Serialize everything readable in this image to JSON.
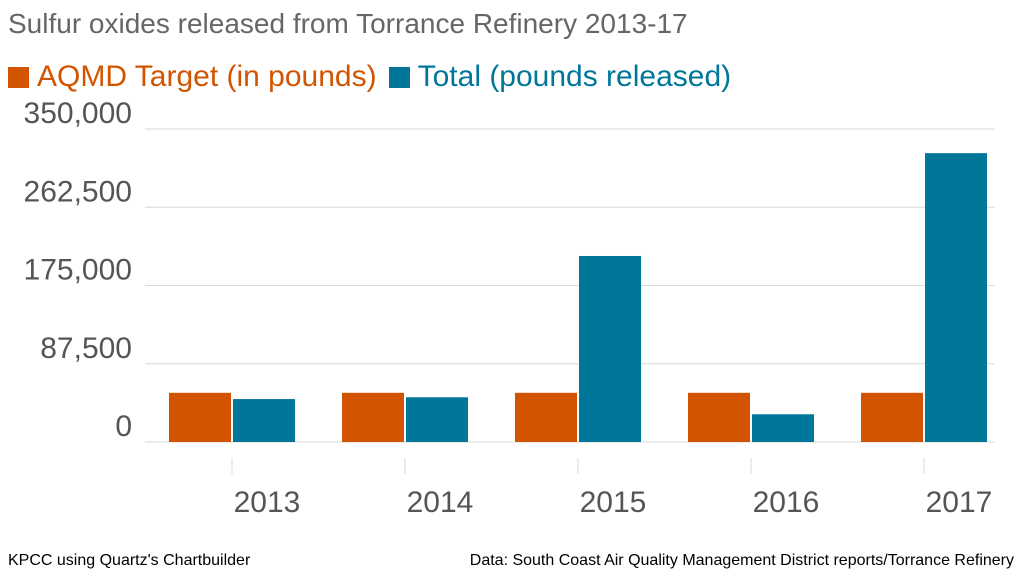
{
  "title": "Sulfur oxides released from Torrance Refinery 2013-17",
  "legend": [
    {
      "label": "AQMD Target (in pounds)",
      "color": "#d35400"
    },
    {
      "label": "Total (pounds released)",
      "color": "#00779a"
    }
  ],
  "chart_data": {
    "type": "bar",
    "title": "Sulfur oxides released from Torrance Refinery 2013-17",
    "categories": [
      "2013",
      "2014",
      "2015",
      "2016",
      "2017"
    ],
    "series": [
      {
        "name": "AQMD Target (in pounds)",
        "color": "#d35400",
        "values": [
          55000,
          55000,
          55000,
          55000,
          55000
        ]
      },
      {
        "name": "Total (pounds released)",
        "color": "#00779a",
        "values": [
          48000,
          50000,
          208000,
          31000,
          323000
        ]
      }
    ],
    "yticks": [
      "0",
      "87,500",
      "175,000",
      "262,500",
      "350,000"
    ],
    "ylim": [
      0,
      350000
    ],
    "grid": true,
    "legend_position": "top-left",
    "xlabel": "",
    "ylabel": ""
  },
  "footer": {
    "left": "KPCC using Quartz's Chartbuilder",
    "right": "Data: South Coast Air Quality Management District reports/Torrance Refinery"
  },
  "colors": {
    "title": "#666666",
    "axis_text": "#555555",
    "grid": "#d9d9d9"
  }
}
